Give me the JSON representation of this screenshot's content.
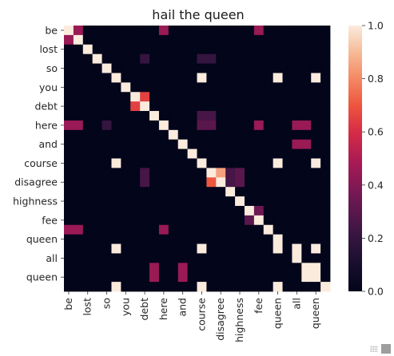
{
  "chart_data": {
    "type": "heatmap",
    "title": "hail the queen",
    "x_labels": [
      "be",
      "lost",
      "so",
      "you",
      "debt",
      "here",
      "and",
      "course",
      "disagree",
      "highness",
      "fee",
      "queen",
      "all",
      "queen"
    ],
    "y_labels": [
      "be",
      "lost",
      "so",
      "you",
      "debt",
      "here",
      "and",
      "course",
      "disagree",
      "highness",
      "fee",
      "queen",
      "all",
      "queen"
    ],
    "tokens": [
      "be",
      "",
      "lost",
      "",
      "so",
      "",
      "you",
      "",
      "debt",
      "",
      "here",
      "",
      "and",
      "",
      "course",
      "",
      "disagree",
      "",
      "highness",
      "",
      "fee",
      "",
      "queen",
      "",
      "all",
      "",
      "queen",
      ""
    ],
    "matrix": [
      [
        1.0,
        0.45,
        0,
        0,
        0,
        0,
        0,
        0,
        0,
        0,
        0.45,
        0,
        0,
        0,
        0,
        0,
        0,
        0,
        0,
        0,
        0.45,
        0,
        0,
        0,
        0,
        0,
        0,
        0
      ],
      [
        0.45,
        1.0,
        0,
        0,
        0,
        0,
        0,
        0,
        0,
        0,
        0,
        0,
        0,
        0,
        0,
        0,
        0,
        0,
        0,
        0,
        0,
        0,
        0,
        0,
        0,
        0,
        0,
        0
      ],
      [
        0,
        0,
        1.0,
        0,
        0,
        0,
        0,
        0,
        0,
        0,
        0,
        0,
        0,
        0,
        0,
        0,
        0,
        0,
        0,
        0,
        0,
        0,
        0,
        0,
        0,
        0,
        0,
        0
      ],
      [
        0,
        0,
        0,
        1.0,
        0,
        0,
        0,
        0,
        0.2,
        0,
        0,
        0,
        0,
        0,
        0.2,
        0.2,
        0,
        0,
        0,
        0,
        0,
        0,
        0,
        0,
        0,
        0,
        0,
        0
      ],
      [
        0,
        0,
        0,
        0,
        1.0,
        0,
        0,
        0,
        0,
        0,
        0,
        0,
        0,
        0,
        0,
        0,
        0,
        0,
        0,
        0,
        0,
        0,
        0,
        0,
        0,
        0,
        0,
        0
      ],
      [
        0,
        0,
        0,
        0,
        0,
        1.0,
        0,
        0,
        0,
        0,
        0,
        0,
        0,
        0,
        1.0,
        0,
        0,
        0,
        0,
        0,
        0,
        0,
        1.0,
        0,
        0,
        0,
        1.0,
        0
      ],
      [
        0,
        0,
        0,
        0,
        0,
        0,
        1.0,
        0,
        0,
        0,
        0,
        0,
        0,
        0,
        0,
        0,
        0,
        0,
        0,
        0,
        0,
        0,
        0,
        0,
        0,
        0,
        0,
        0
      ],
      [
        0,
        0,
        0,
        0,
        0,
        0,
        0,
        1.0,
        0.65,
        0,
        0,
        0,
        0,
        0,
        0,
        0,
        0,
        0,
        0,
        0,
        0,
        0,
        0,
        0,
        0,
        0,
        0,
        0
      ],
      [
        0,
        0,
        0,
        0,
        0,
        0,
        0,
        0.65,
        1.0,
        0,
        0,
        0,
        0,
        0,
        0,
        0,
        0,
        0,
        0,
        0,
        0,
        0,
        0,
        0,
        0,
        0,
        0,
        0
      ],
      [
        0,
        0,
        0,
        0,
        0,
        0,
        0,
        0,
        0,
        1.0,
        0,
        0,
        0,
        0,
        0.25,
        0.25,
        0,
        0,
        0,
        0,
        0,
        0,
        0,
        0,
        0,
        0,
        0,
        0
      ],
      [
        0.45,
        0.45,
        0,
        0,
        0.2,
        0,
        0,
        0,
        0,
        0,
        1.0,
        0,
        0,
        0,
        0.3,
        0.3,
        0,
        0,
        0,
        0,
        0.45,
        0,
        0,
        0,
        0.45,
        0.45,
        0,
        0
      ],
      [
        0,
        0,
        0,
        0,
        0,
        0,
        0,
        0,
        0,
        0,
        0,
        1.0,
        0,
        0,
        0,
        0,
        0,
        0,
        0,
        0,
        0,
        0,
        0,
        0,
        0,
        0,
        0,
        0
      ],
      [
        0,
        0,
        0,
        0,
        0,
        0,
        0,
        0,
        0,
        0,
        0,
        0,
        1.0,
        0,
        0,
        0,
        0,
        0,
        0,
        0,
        0,
        0,
        0,
        0,
        0.45,
        0.45,
        0,
        0
      ],
      [
        0,
        0,
        0,
        0,
        0,
        0,
        0,
        0,
        0,
        0,
        0,
        0,
        0,
        1.0,
        0,
        0,
        0,
        0,
        0,
        0,
        0,
        0,
        0,
        0,
        0,
        0,
        0,
        0
      ],
      [
        0,
        0,
        0,
        0,
        0,
        1.0,
        0,
        0,
        0,
        0,
        0,
        0,
        0,
        0,
        1.0,
        0,
        0,
        0,
        0,
        0,
        0,
        0,
        1.0,
        0,
        0,
        0,
        1.0,
        0
      ],
      [
        0,
        0,
        0,
        0,
        0,
        0,
        0,
        0,
        0.25,
        0,
        0,
        0,
        0,
        0,
        0,
        1.0,
        0.85,
        0.25,
        0.3,
        0,
        0,
        0,
        0,
        0,
        0,
        0,
        0,
        0
      ],
      [
        0,
        0,
        0,
        0,
        0,
        0,
        0,
        0,
        0.25,
        0,
        0,
        0,
        0,
        0,
        0,
        0.7,
        1.0,
        0.25,
        0.3,
        0,
        0,
        0,
        0,
        0,
        0,
        0,
        0,
        0
      ],
      [
        0,
        0,
        0,
        0,
        0,
        0,
        0,
        0,
        0,
        0,
        0,
        0,
        0,
        0,
        0,
        0,
        0,
        1.0,
        0,
        0,
        0,
        0,
        0,
        0,
        0,
        0,
        0,
        0
      ],
      [
        0,
        0,
        0,
        0,
        0,
        0,
        0,
        0,
        0,
        0,
        0,
        0,
        0,
        0,
        0,
        0,
        0,
        0,
        1.0,
        0,
        0,
        0,
        0,
        0,
        0,
        0,
        0,
        0
      ],
      [
        0,
        0,
        0,
        0,
        0,
        0,
        0,
        0,
        0,
        0,
        0,
        0,
        0,
        0,
        0,
        0,
        0,
        0,
        0,
        1.0,
        0.35,
        0,
        0,
        0,
        0,
        0,
        0,
        0
      ],
      [
        0,
        0,
        0,
        0,
        0,
        0,
        0,
        0,
        0,
        0,
        0,
        0,
        0,
        0,
        0,
        0,
        0,
        0,
        0,
        0.3,
        1.0,
        0,
        0,
        0,
        0,
        0,
        0,
        0
      ],
      [
        0.45,
        0.45,
        0,
        0,
        0,
        0,
        0,
        0,
        0,
        0,
        0.45,
        0,
        0,
        0,
        0,
        0,
        0,
        0,
        0,
        0,
        0,
        1.0,
        0,
        0,
        0,
        0,
        0,
        0
      ],
      [
        0,
        0,
        0,
        0,
        0,
        0,
        0,
        0,
        0,
        0,
        0,
        0,
        0,
        0,
        0,
        0,
        0,
        0,
        0,
        0,
        0,
        0,
        1.0,
        0,
        0,
        0,
        0,
        0
      ],
      [
        0,
        0,
        0,
        0,
        0,
        1.0,
        0,
        0,
        0,
        0,
        0,
        0,
        0,
        0,
        1.0,
        0,
        0,
        0,
        0,
        0,
        0,
        0,
        1.0,
        0,
        1.0,
        0,
        1.0,
        0
      ],
      [
        0,
        0,
        0,
        0,
        0,
        0,
        0,
        0,
        0,
        0,
        0,
        0,
        0,
        0,
        0,
        0,
        0,
        0,
        0,
        0,
        0,
        0,
        0,
        0,
        1.0,
        0,
        0,
        0
      ],
      [
        0,
        0,
        0,
        0,
        0,
        0,
        0,
        0,
        0,
        0.45,
        0,
        0,
        0.45,
        0,
        0,
        0,
        0,
        0,
        0,
        0,
        0,
        0,
        0,
        0,
        0,
        1.0,
        1.0,
        0
      ],
      [
        0,
        0,
        0,
        0,
        0,
        0,
        0,
        0,
        0,
        0.45,
        0,
        0,
        0.45,
        0,
        0,
        0,
        0,
        0,
        0,
        0,
        0,
        0,
        0,
        0,
        0,
        1.0,
        1.0,
        0
      ],
      [
        0,
        0,
        0,
        0,
        0,
        1.0,
        0,
        0,
        0,
        0,
        0,
        0,
        0,
        0,
        1.0,
        0,
        0,
        0,
        0,
        0,
        0,
        0,
        1.0,
        0,
        0,
        0,
        0,
        1.0
      ]
    ],
    "colorbar": {
      "min": 0.0,
      "max": 1.0,
      "ticks": [
        "0.0",
        "0.2",
        "0.4",
        "0.6",
        "0.8",
        "1.0"
      ]
    },
    "colormap": "rocket",
    "grid": false
  }
}
